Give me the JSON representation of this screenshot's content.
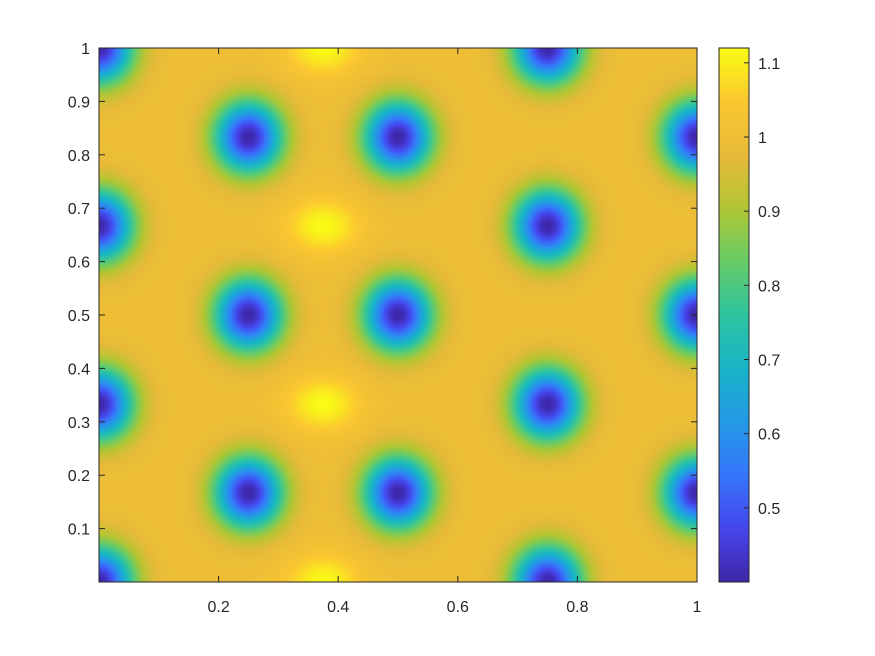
{
  "chart_data": {
    "type": "heatmap",
    "title": "",
    "xlabel": "",
    "ylabel": "",
    "xlim": [
      0,
      1
    ],
    "ylim": [
      0,
      1
    ],
    "x_ticks": [
      {
        "value": 0.2,
        "label": "0.2"
      },
      {
        "value": 0.4,
        "label": "0.4"
      },
      {
        "value": 0.6,
        "label": "0.6"
      },
      {
        "value": 0.8,
        "label": "0.8"
      },
      {
        "value": 1,
        "label": "1"
      }
    ],
    "y_ticks": [
      {
        "value": 0.1,
        "label": "0.1"
      },
      {
        "value": 0.2,
        "label": "0.2"
      },
      {
        "value": 0.3,
        "label": "0.3"
      },
      {
        "value": 0.4,
        "label": "0.4"
      },
      {
        "value": 0.5,
        "label": "0.5"
      },
      {
        "value": 0.6,
        "label": "0.6"
      },
      {
        "value": 0.7,
        "label": "0.7"
      },
      {
        "value": 0.8,
        "label": "0.8"
      },
      {
        "value": 0.9,
        "label": "0.9"
      },
      {
        "value": 1,
        "label": "1"
      }
    ],
    "colormap": "parula",
    "colorbar": {
      "location": "right",
      "clim": [
        0.4,
        1.12
      ],
      "ticks": [
        {
          "value": 0.5,
          "label": "0.5"
        },
        {
          "value": 0.6,
          "label": "0.6"
        },
        {
          "value": 0.7,
          "label": "0.7"
        },
        {
          "value": 0.8,
          "label": "0.8"
        },
        {
          "value": 0.9,
          "label": "0.9"
        },
        {
          "value": 1,
          "label": "1"
        },
        {
          "value": 1.1,
          "label": "1.1"
        }
      ]
    },
    "field": {
      "background_value": 1.0,
      "minima": [
        {
          "x": 0.0,
          "y": 0.0
        },
        {
          "x": 0.0,
          "y": 0.333
        },
        {
          "x": 0.0,
          "y": 0.667
        },
        {
          "x": 0.0,
          "y": 1.0
        },
        {
          "x": 0.25,
          "y": 0.167
        },
        {
          "x": 0.25,
          "y": 0.5
        },
        {
          "x": 0.25,
          "y": 0.833
        },
        {
          "x": 0.5,
          "y": 0.167
        },
        {
          "x": 0.5,
          "y": 0.5
        },
        {
          "x": 0.5,
          "y": 0.833
        },
        {
          "x": 0.75,
          "y": 0.0
        },
        {
          "x": 0.75,
          "y": 0.333
        },
        {
          "x": 0.75,
          "y": 0.667
        },
        {
          "x": 0.75,
          "y": 1.0
        },
        {
          "x": 1.0,
          "y": 0.167
        },
        {
          "x": 1.0,
          "y": 0.5
        },
        {
          "x": 1.0,
          "y": 0.833
        }
      ],
      "minimum_value": 0.4,
      "maxima": [
        {
          "x": 0.375,
          "y": 0.0
        },
        {
          "x": 0.375,
          "y": 0.333
        },
        {
          "x": 0.375,
          "y": 0.667
        },
        {
          "x": 0.375,
          "y": 1.0
        }
      ],
      "maximum_value": 1.12
    },
    "colors": {
      "axis": "#262626",
      "parula_low": "#3e26a8",
      "parula_high": "#f9fb15"
    }
  }
}
